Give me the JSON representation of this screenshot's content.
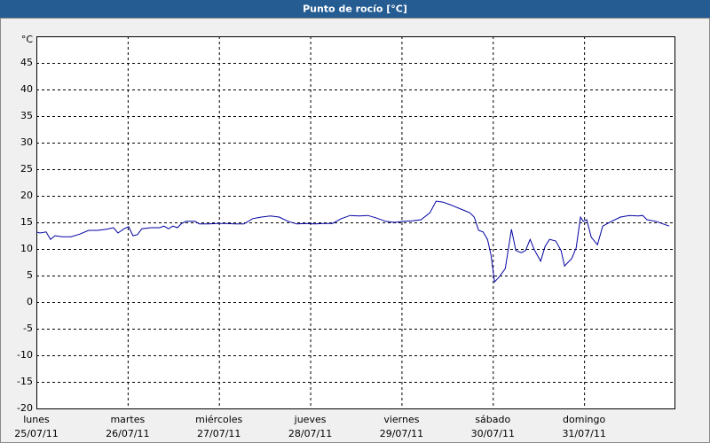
{
  "chart_data": {
    "type": "line",
    "title": "Punto de rocío [°C]",
    "ylabel": "°C",
    "color": "#0000a0",
    "grid": true,
    "xlim": [
      0,
      7
    ],
    "xticks": [
      {
        "value": 0,
        "label": "lunes",
        "date": "25/07/11"
      },
      {
        "value": 1,
        "label": "martes",
        "date": "26/07/11"
      },
      {
        "value": 2,
        "label": "miércoles",
        "date": "27/07/11"
      },
      {
        "value": 3,
        "label": "jueves",
        "date": "28/07/11"
      },
      {
        "value": 4,
        "label": "viernes",
        "date": "29/07/11"
      },
      {
        "value": 5,
        "label": "sábado",
        "date": "30/07/11"
      },
      {
        "value": 6,
        "label": "domingo",
        "date": "31/07/11"
      }
    ],
    "ylim": [
      -20,
      50
    ],
    "yticks": [
      -20,
      -15,
      -10,
      -5,
      0,
      5,
      10,
      15,
      20,
      25,
      30,
      35,
      40,
      45
    ],
    "x": [
      0,
      0.039,
      0.107,
      0.155,
      0.204,
      0.282,
      0.379,
      0.476,
      0.573,
      0.67,
      0.767,
      0.845,
      0.893,
      0.961,
      1.01,
      1.058,
      1.107,
      1.155,
      1.252,
      1.35,
      1.398,
      1.447,
      1.495,
      1.544,
      1.592,
      1.641,
      1.738,
      1.786,
      1.883,
      1.981,
      2.078,
      2.175,
      2.272,
      2.369,
      2.466,
      2.563,
      2.66,
      2.757,
      2.854,
      2.951,
      3.049,
      3.146,
      3.243,
      3.34,
      3.437,
      3.534,
      3.631,
      3.728,
      3.825,
      3.922,
      4.019,
      4.117,
      4.214,
      4.311,
      4.379,
      4.456,
      4.553,
      4.65,
      4.748,
      4.796,
      4.845,
      4.893,
      4.942,
      4.981,
      5.019,
      5.068,
      5.136,
      5.204,
      5.252,
      5.311,
      5.359,
      5.408,
      5.456,
      5.524,
      5.573,
      5.621,
      5.689,
      5.748,
      5.786,
      5.864,
      5.913,
      5.961,
      5.99,
      6.029,
      6.078,
      6.146,
      6.204,
      6.301,
      6.398,
      6.495,
      6.592,
      6.641,
      6.689,
      6.786,
      6.932
    ],
    "values": [
      13.2,
      13,
      13.2,
      11.8,
      12.5,
      12.3,
      12.3,
      12.8,
      13.5,
      13.5,
      13.7,
      14,
      13,
      13.8,
      14.2,
      12.5,
      12.7,
      13.8,
      14,
      14,
      14.3,
      13.8,
      14.3,
      14,
      14.8,
      15.2,
      15.2,
      14.7,
      14.7,
      14.8,
      14.8,
      14.7,
      14.7,
      15.7,
      16,
      16.2,
      16,
      15.2,
      14.7,
      14.8,
      14.7,
      14.8,
      14.8,
      15.7,
      16.3,
      16.2,
      16.3,
      15.8,
      15.2,
      15,
      15.2,
      15.3,
      15.5,
      16.8,
      19,
      18.8,
      18.2,
      17.5,
      16.8,
      16,
      13.5,
      13.2,
      11.8,
      8.8,
      3.8,
      4.7,
      6.3,
      13.7,
      9.7,
      9.3,
      9.7,
      11.8,
      9.8,
      7.7,
      10.5,
      11.8,
      11.5,
      9.7,
      6.8,
      8.2,
      10.2,
      16,
      15.2,
      15.5,
      12.2,
      10.8,
      14.3,
      15.2,
      16,
      16.3,
      16.2,
      16.3,
      15.5,
      15.2,
      14.3
    ]
  }
}
